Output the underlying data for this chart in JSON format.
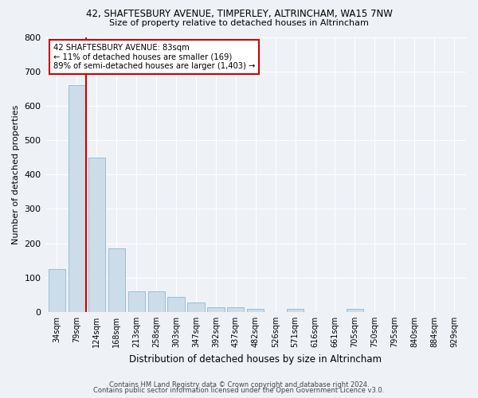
{
  "title1": "42, SHAFTESBURY AVENUE, TIMPERLEY, ALTRINCHAM, WA15 7NW",
  "title2": "Size of property relative to detached houses in Altrincham",
  "xlabel": "Distribution of detached houses by size in Altrincham",
  "ylabel": "Number of detached properties",
  "categories": [
    "34sqm",
    "79sqm",
    "124sqm",
    "168sqm",
    "213sqm",
    "258sqm",
    "303sqm",
    "347sqm",
    "392sqm",
    "437sqm",
    "482sqm",
    "526sqm",
    "571sqm",
    "616sqm",
    "661sqm",
    "705sqm",
    "750sqm",
    "795sqm",
    "840sqm",
    "884sqm",
    "929sqm"
  ],
  "values": [
    125,
    660,
    450,
    185,
    60,
    60,
    43,
    27,
    14,
    14,
    8,
    0,
    8,
    0,
    0,
    8,
    0,
    0,
    0,
    0,
    0
  ],
  "bar_color": "#ccdce9",
  "bar_edge_color": "#9bbcd4",
  "annotation_text1": "42 SHAFTESBURY AVENUE: 83sqm",
  "annotation_text2": "← 11% of detached houses are smaller (169)",
  "annotation_text3": "89% of semi-detached houses are larger (1,403) →",
  "annotation_box_color": "#ffffff",
  "annotation_border_color": "#cc0000",
  "ylim": [
    0,
    800
  ],
  "yticks": [
    0,
    100,
    200,
    300,
    400,
    500,
    600,
    700,
    800
  ],
  "footer1": "Contains HM Land Registry data © Crown copyright and database right 2024.",
  "footer2": "Contains public sector information licensed under the Open Government Licence v3.0.",
  "bg_color": "#eef2f7",
  "grid_color": "#ffffff",
  "property_bin_low": 79,
  "property_bin_high": 124,
  "property_bin_idx": 1,
  "property_value": 83
}
